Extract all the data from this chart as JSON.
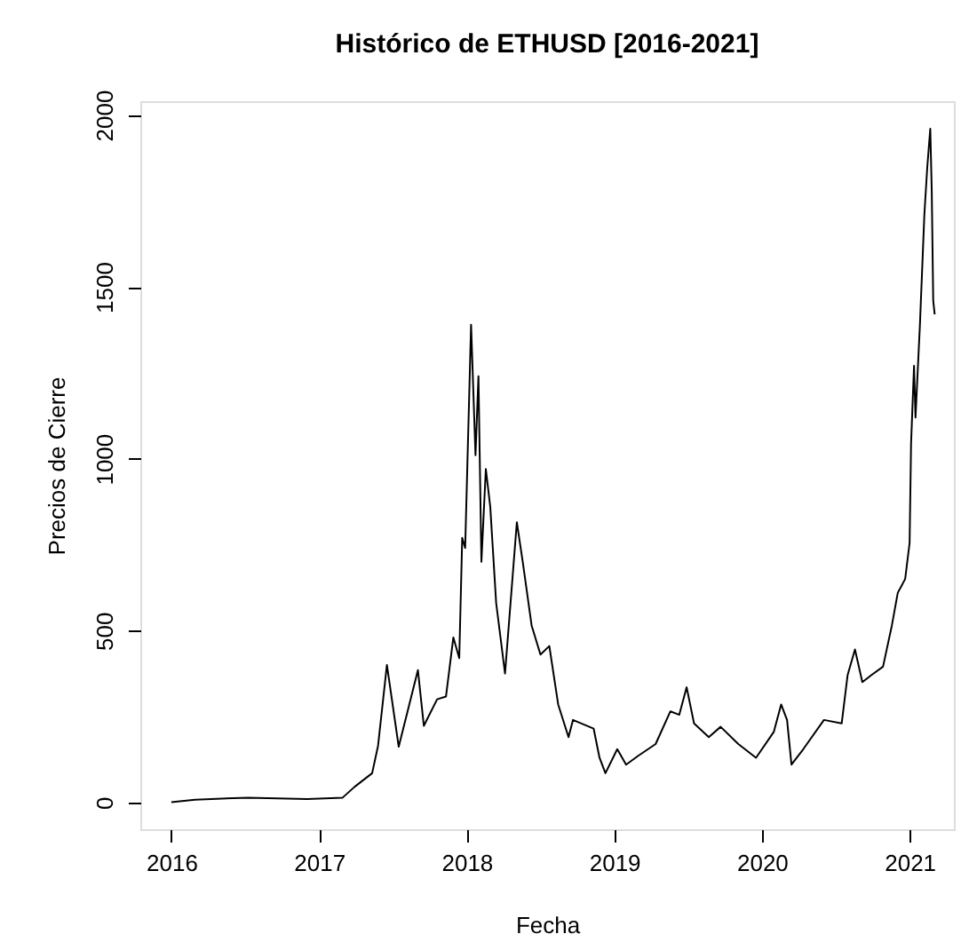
{
  "chart_data": {
    "type": "line",
    "title": "Histórico de ETHUSD [2016-2021]",
    "xlabel": "Fecha",
    "ylabel": "Precios de Cierre",
    "x": [
      2016.0,
      2016.16,
      2016.52,
      2016.92,
      2017.16,
      2017.24,
      2017.36,
      2017.4,
      2017.46,
      2017.54,
      2017.67,
      2017.71,
      2017.8,
      2017.86,
      2017.91,
      2017.95,
      2017.97,
      2017.99,
      2018.03,
      2018.06,
      2018.08,
      2018.1,
      2018.13,
      2018.16,
      2018.2,
      2018.26,
      2018.34,
      2018.38,
      2018.44,
      2018.5,
      2018.56,
      2018.62,
      2018.69,
      2018.72,
      2018.86,
      2018.9,
      2018.94,
      2019.02,
      2019.08,
      2019.16,
      2019.28,
      2019.38,
      2019.44,
      2019.49,
      2019.54,
      2019.64,
      2019.72,
      2019.84,
      2019.96,
      2020.08,
      2020.13,
      2020.17,
      2020.2,
      2020.28,
      2020.42,
      2020.54,
      2020.58,
      2020.63,
      2020.68,
      2020.74,
      2020.82,
      2020.88,
      2020.92,
      2020.97,
      2021.0,
      2021.01,
      2021.03,
      2021.04,
      2021.07,
      2021.1,
      2021.12,
      2021.14,
      2021.15,
      2021.16,
      2021.17
    ],
    "series": [
      {
        "color": "#000000",
        "values": [
          1,
          8,
          14,
          10,
          14,
          45,
          85,
          165,
          400,
          162,
          385,
          223,
          300,
          308,
          480,
          420,
          770,
          740,
          1390,
          1010,
          1240,
          700,
          970,
          860,
          580,
          375,
          815,
          700,
          515,
          430,
          455,
          285,
          190,
          240,
          215,
          130,
          85,
          155,
          110,
          135,
          170,
          265,
          255,
          335,
          230,
          190,
          220,
          170,
          130,
          205,
          285,
          240,
          110,
          155,
          240,
          230,
          370,
          445,
          350,
          370,
          395,
          515,
          610,
          650,
          755,
          1045,
          1270,
          1120,
          1390,
          1710,
          1850,
          1960,
          1780,
          1460,
          1420
        ]
      }
    ],
    "xlim": [
      2015.79,
      2021.3
    ],
    "xticks": [
      2016,
      2017,
      2018,
      2019,
      2020,
      2021
    ],
    "ylim": [
      -78,
      2040
    ],
    "yticks": [
      0,
      500,
      1000,
      1500,
      2000
    ],
    "grid": false,
    "line_style": "solid"
  }
}
